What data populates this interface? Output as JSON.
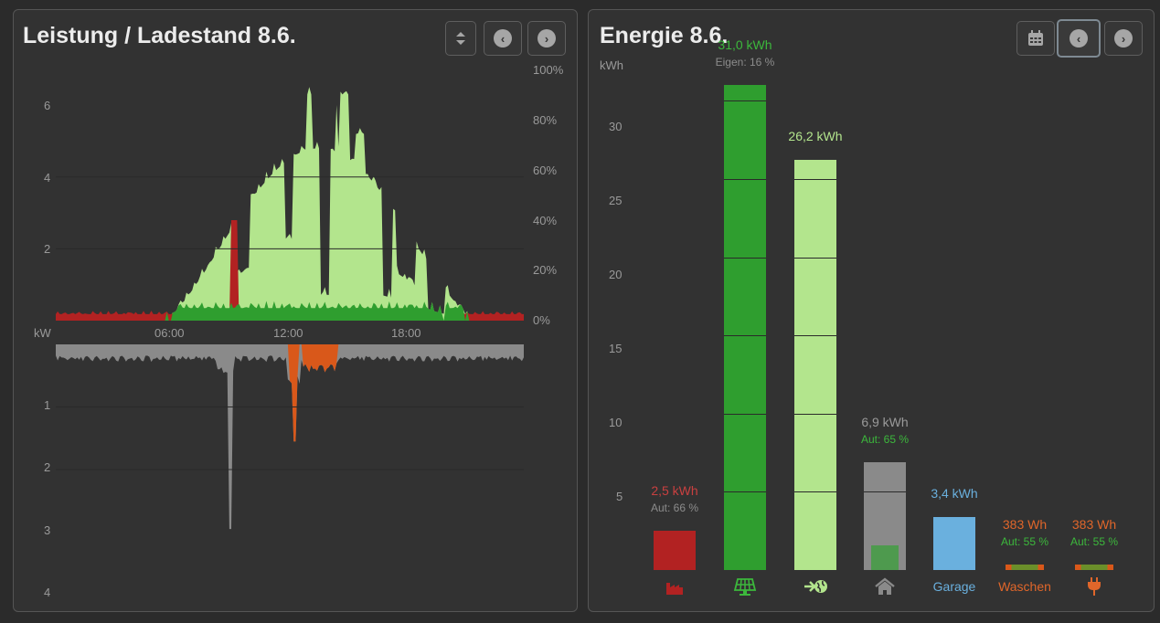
{
  "left_panel": {
    "title": "Leistung / Ladestand 8.6.",
    "buttons": [
      "sort-icon",
      "chevron-left-icon",
      "chevron-right-icon"
    ],
    "chart_data": {
      "type": "area",
      "x_ticks": [
        "06:00",
        "12:00",
        "18:00"
      ],
      "y_unit": "kW",
      "y_upper_ticks": [
        "6",
        "4",
        "2"
      ],
      "y_lower_ticks": [
        "1",
        "2",
        "3",
        "4"
      ],
      "y_right_ticks": [
        "100%",
        "80%",
        "60%",
        "40%",
        "20%",
        "0%"
      ],
      "y_upper_lim": [
        0,
        6.5
      ],
      "y_lower_lim": [
        0,
        4
      ],
      "colors": {
        "grid_import": "#b22222",
        "pv_self": "#2f9e2f",
        "pv_feed": "#b3e58d",
        "consumption": "#8a8a8a",
        "consumer": "#d9581a"
      }
    }
  },
  "right_panel": {
    "title": "Energie 8.6.",
    "unit": "kWh",
    "y_ticks": [
      "30",
      "25",
      "20",
      "15",
      "10",
      "5"
    ],
    "buttons": [
      "calendar-icon",
      "chevron-left-icon",
      "chevron-right-icon"
    ],
    "chart_data": {
      "type": "bar",
      "ylim": [
        0,
        33
      ],
      "bars": [
        {
          "value": 2.5,
          "label": "2,5 kWh",
          "sub": "Aut: 66 %",
          "color": "#b22222",
          "label_color": "#c94040",
          "sub_color": "#8c8c8c",
          "icon": "factory-icon",
          "category": ""
        },
        {
          "value": 31.0,
          "label": "31,0 kWh",
          "sub": "Eigen: 16 %",
          "color": "#2f9e2f",
          "label_color": "#3cb83c",
          "sub_color": "#8c8c8c",
          "icon": "solar-panel-icon",
          "category": ""
        },
        {
          "value": 26.2,
          "label": "26,2 kWh",
          "sub": "",
          "color": "#b3e58d",
          "label_color": "#b3e58d",
          "sub_color": "#8c8c8c",
          "icon": "grid-export-icon",
          "category": ""
        },
        {
          "value": 6.9,
          "label": "6,9 kWh",
          "sub": "Aut: 65 %",
          "color": "#8a8a8a",
          "label_color": "#9a9a9a",
          "sub_color": "#3cb83c",
          "icon": "home-icon",
          "category": "",
          "inner_value": 1.6
        },
        {
          "value": 3.4,
          "label": "3,4 kWh",
          "sub": "",
          "color": "#6ab0de",
          "label_color": "#6ab0de",
          "sub_color": "#8c8c8c",
          "icon": "",
          "category": "Garage"
        },
        {
          "value": 0.383,
          "label": "383 Wh",
          "sub": "Aut: 55 %",
          "color": "#d9581a",
          "label_color": "#e0662a",
          "sub_color": "#3cb83c",
          "icon": "",
          "category": "Waschen"
        },
        {
          "value": 0.383,
          "label": "383 Wh",
          "sub": "Aut: 55 %",
          "color": "#d9581a",
          "label_color": "#e0662a",
          "sub_color": "#3cb83c",
          "icon": "plug-icon",
          "category": ""
        }
      ]
    }
  }
}
